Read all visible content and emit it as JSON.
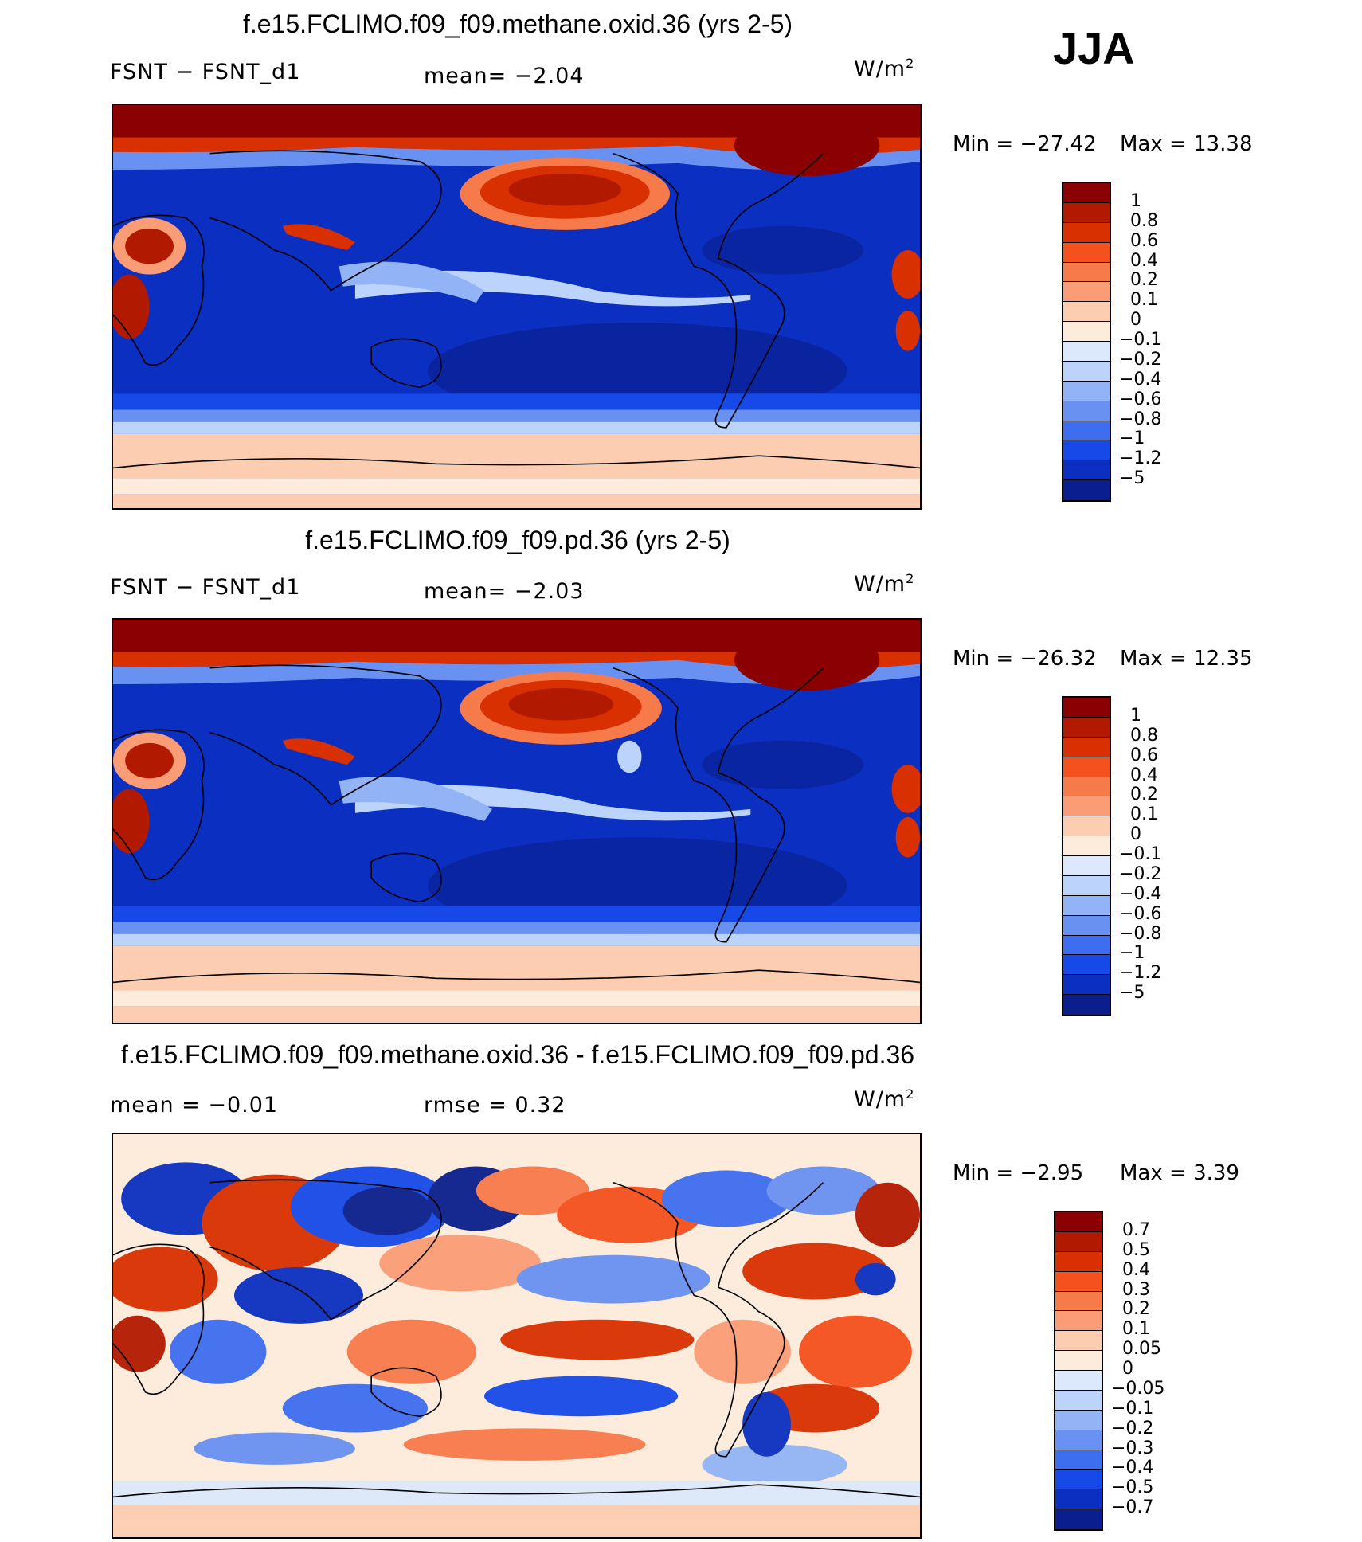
{
  "season": "JJA",
  "panels": [
    {
      "title": "f.e15.FCLIMO.f09_f09.methane.oxid.36 (yrs 2-5)",
      "left_label": "FSNT  −  FSNT_d1",
      "mid_label": "mean=   −2.04",
      "units": "W/m",
      "units_exp": "2",
      "min_label": "Min  =  −27.42",
      "max_label": "Max  =    13.38",
      "colorbar": {
        "colors": [
          "#8b0000",
          "#b21a00",
          "#d83000",
          "#f4511e",
          "#f77a4a",
          "#fa9d76",
          "#fdcdb1",
          "#fdebdc",
          "#dce8fb",
          "#bcd4fb",
          "#92b4f6",
          "#6891f2",
          "#3e6ef0",
          "#1749e8",
          "#0b2fc0",
          "#0a1f8d"
        ],
        "labels": [
          "1",
          "0.8",
          "0.6",
          "0.4",
          "0.2",
          "0.1",
          "0",
          "−0.1",
          "−0.2",
          "−0.4",
          "−0.6",
          "−0.8",
          "−1",
          "−1.2",
          "−5"
        ]
      }
    },
    {
      "title": "f.e15.FCLIMO.f09_f09.pd.36 (yrs 2-5)",
      "left_label": "FSNT  −  FSNT_d1",
      "mid_label": "mean=   −2.03",
      "units": "W/m",
      "units_exp": "2",
      "min_label": "Min  =  −26.32",
      "max_label": "Max  =    12.35",
      "colorbar": {
        "colors": [
          "#8b0000",
          "#b21a00",
          "#d83000",
          "#f4511e",
          "#f77a4a",
          "#fa9d76",
          "#fdcdb1",
          "#fdebdc",
          "#dce8fb",
          "#bcd4fb",
          "#92b4f6",
          "#6891f2",
          "#3e6ef0",
          "#1749e8",
          "#0b2fc0",
          "#0a1f8d"
        ],
        "labels": [
          "1",
          "0.8",
          "0.6",
          "0.4",
          "0.2",
          "0.1",
          "0",
          "−0.1",
          "−0.2",
          "−0.4",
          "−0.6",
          "−0.8",
          "−1",
          "−1.2",
          "−5"
        ]
      }
    },
    {
      "title": "f.e15.FCLIMO.f09_f09.methane.oxid.36 - f.e15.FCLIMO.f09_f09.pd.36",
      "left_label": "mean  =    −0.01",
      "mid_label": "rmse  =     0.32",
      "units": "W/m",
      "units_exp": "2",
      "min_label": "Min  =     −2.95",
      "max_label": "Max  =     3.39",
      "colorbar": {
        "colors": [
          "#8b0000",
          "#b21a00",
          "#d83000",
          "#f4511e",
          "#f77a4a",
          "#fa9d76",
          "#fdcdb1",
          "#fdebdc",
          "#dce8fb",
          "#bcd4fb",
          "#92b4f6",
          "#6891f2",
          "#3e6ef0",
          "#1749e8",
          "#0b2fc0",
          "#0a1f8d"
        ],
        "labels": [
          "0.7",
          "0.5",
          "0.4",
          "0.3",
          "0.2",
          "0.1",
          "0.05",
          "0",
          "−0.05",
          "−0.1",
          "−0.2",
          "−0.3",
          "−0.4",
          "−0.5",
          "−0.7"
        ]
      }
    }
  ]
}
